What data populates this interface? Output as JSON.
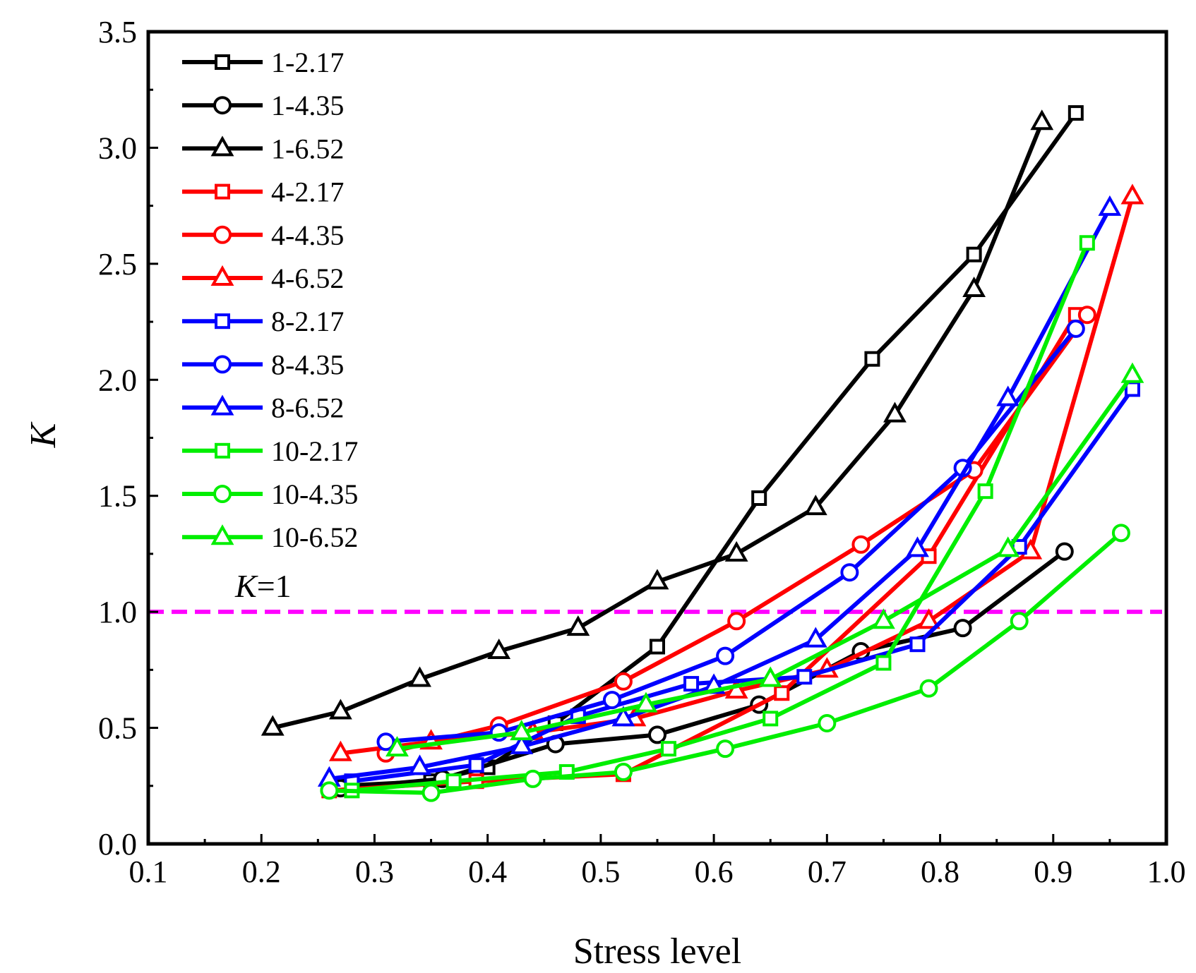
{
  "chart_data": {
    "type": "line",
    "xlabel": "Stress level",
    "ylabel": "K",
    "xlim": [
      0.1,
      1.0
    ],
    "ylim": [
      0.0,
      3.5
    ],
    "xticks": [
      "0.1",
      "0.2",
      "0.3",
      "0.4",
      "0.5",
      "0.6",
      "0.7",
      "0.8",
      "0.9",
      "1.0"
    ],
    "yticks": [
      "0.0",
      "0.5",
      "1.0",
      "1.5",
      "2.0",
      "2.5",
      "3.0",
      "3.5"
    ],
    "grid": false,
    "legend_position": "top-left",
    "reference_line": {
      "y": 1.0,
      "label_var": "K",
      "label_rest": "=1",
      "color": "#ff00ff",
      "style": "dashed"
    },
    "series": [
      {
        "name": "1-2.17",
        "color": "#000000",
        "marker": "square",
        "x": [
          0.27,
          0.35,
          0.4,
          0.46,
          0.55,
          0.64,
          0.74,
          0.83,
          0.92
        ],
        "y": [
          0.25,
          0.27,
          0.33,
          0.52,
          0.85,
          1.49,
          2.09,
          2.54,
          3.15
        ]
      },
      {
        "name": "1-4.35",
        "color": "#000000",
        "marker": "circle",
        "x": [
          0.27,
          0.36,
          0.46,
          0.55,
          0.64,
          0.73,
          0.82,
          0.91
        ],
        "y": [
          0.24,
          0.28,
          0.43,
          0.47,
          0.6,
          0.83,
          0.93,
          1.26
        ]
      },
      {
        "name": "1-6.52",
        "color": "#000000",
        "marker": "triangle",
        "x": [
          0.21,
          0.27,
          0.34,
          0.41,
          0.48,
          0.55,
          0.62,
          0.69,
          0.76,
          0.83,
          0.89
        ],
        "y": [
          0.5,
          0.57,
          0.71,
          0.83,
          0.93,
          1.13,
          1.25,
          1.45,
          1.85,
          2.39,
          3.11
        ]
      },
      {
        "name": "4-2.17",
        "color": "#ff0000",
        "marker": "square",
        "x": [
          0.26,
          0.39,
          0.52,
          0.66,
          0.79,
          0.92
        ],
        "y": [
          0.23,
          0.27,
          0.3,
          0.65,
          1.24,
          2.28
        ]
      },
      {
        "name": "4-4.35",
        "color": "#ff0000",
        "marker": "circle",
        "x": [
          0.31,
          0.41,
          0.52,
          0.62,
          0.73,
          0.83,
          0.93
        ],
        "y": [
          0.39,
          0.51,
          0.7,
          0.96,
          1.29,
          1.61,
          2.28
        ]
      },
      {
        "name": "4-6.52",
        "color": "#ff0000",
        "marker": "triangle",
        "x": [
          0.27,
          0.35,
          0.44,
          0.53,
          0.62,
          0.7,
          0.79,
          0.88,
          0.97
        ],
        "y": [
          0.39,
          0.44,
          0.48,
          0.54,
          0.66,
          0.75,
          0.96,
          1.26,
          2.79
        ]
      },
      {
        "name": "8-2.17",
        "color": "#0000ff",
        "marker": "square",
        "x": [
          0.28,
          0.39,
          0.48,
          0.58,
          0.68,
          0.78,
          0.87,
          0.97
        ],
        "y": [
          0.27,
          0.34,
          0.55,
          0.69,
          0.72,
          0.86,
          1.28,
          1.96
        ]
      },
      {
        "name": "8-4.35",
        "color": "#0000ff",
        "marker": "circle",
        "x": [
          0.31,
          0.41,
          0.51,
          0.61,
          0.72,
          0.82,
          0.92
        ],
        "y": [
          0.44,
          0.48,
          0.62,
          0.81,
          1.17,
          1.62,
          2.22
        ]
      },
      {
        "name": "8-6.52",
        "color": "#0000ff",
        "marker": "triangle",
        "x": [
          0.26,
          0.34,
          0.43,
          0.52,
          0.6,
          0.69,
          0.78,
          0.86,
          0.95
        ],
        "y": [
          0.28,
          0.33,
          0.42,
          0.54,
          0.68,
          0.88,
          1.27,
          1.92,
          2.74
        ]
      },
      {
        "name": "10-2.17",
        "color": "#00ee00",
        "marker": "square",
        "x": [
          0.28,
          0.37,
          0.47,
          0.56,
          0.65,
          0.75,
          0.84,
          0.93
        ],
        "y": [
          0.23,
          0.27,
          0.31,
          0.41,
          0.54,
          0.78,
          1.52,
          2.59
        ]
      },
      {
        "name": "10-4.35",
        "color": "#00ee00",
        "marker": "circle",
        "x": [
          0.26,
          0.35,
          0.44,
          0.52,
          0.61,
          0.7,
          0.79,
          0.87,
          0.96
        ],
        "y": [
          0.23,
          0.22,
          0.28,
          0.31,
          0.41,
          0.52,
          0.67,
          0.96,
          1.34
        ]
      },
      {
        "name": "10-6.52",
        "color": "#00ee00",
        "marker": "triangle",
        "x": [
          0.32,
          0.43,
          0.54,
          0.65,
          0.75,
          0.86,
          0.97
        ],
        "y": [
          0.41,
          0.48,
          0.6,
          0.71,
          0.96,
          1.27,
          2.02
        ]
      }
    ]
  }
}
